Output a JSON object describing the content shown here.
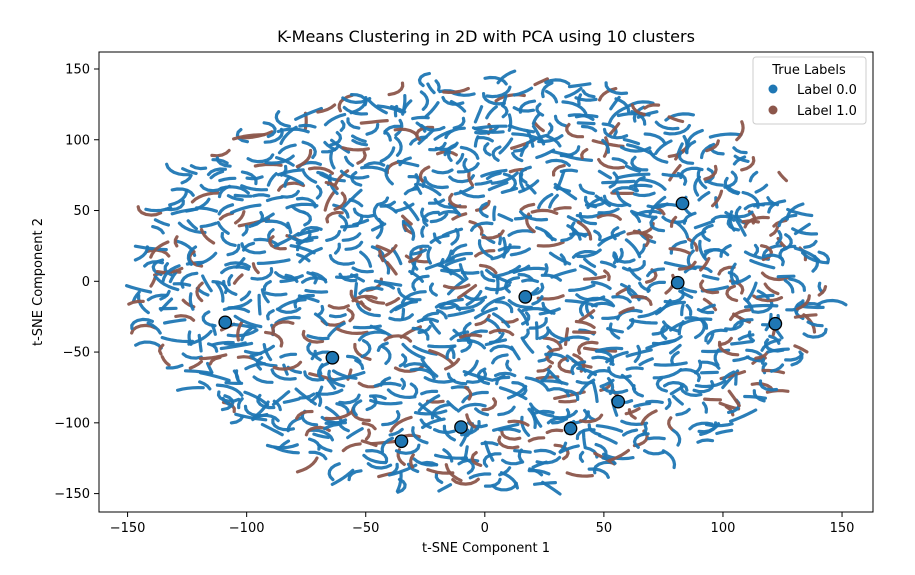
{
  "chart_data": {
    "type": "scatter",
    "title": "K-Means Clustering in 2D with PCA using 10 clusters",
    "xlabel": "t-SNE Component 1",
    "ylabel": "t-SNE Component 2",
    "xlim": [
      -162,
      163
    ],
    "ylim": [
      -163,
      162
    ],
    "xticks": [
      -150,
      -100,
      -50,
      0,
      50,
      100,
      150
    ],
    "yticks": [
      -150,
      -100,
      -50,
      0,
      50,
      100,
      150
    ],
    "xtick_labels": [
      "−150",
      "−100",
      "−50",
      "0",
      "50",
      "100",
      "150"
    ],
    "ytick_labels": [
      "−150",
      "−100",
      "−50",
      "0",
      "50",
      "100",
      "150"
    ],
    "grid": false,
    "legend": {
      "title": "True Labels",
      "placement": "top-right",
      "entries": [
        {
          "label": "Label 0.0",
          "color": "#1f77b4"
        },
        {
          "label": "Label 1.0",
          "color": "#8c564b"
        }
      ]
    },
    "point_cloud": {
      "shape": "ellipse",
      "center": [
        0,
        0
      ],
      "x_half_width": 148,
      "y_half_height": 148,
      "pattern": "short curved worm-like strands",
      "colors": {
        "label_0": "#1f77b4",
        "label_1": "#8c564b"
      },
      "label_1_fraction": 0.2
    },
    "centroids": {
      "name": "cluster centers",
      "color": "#1f77b4",
      "edge_color": "#000000",
      "points": [
        {
          "x": 83,
          "y": 55
        },
        {
          "x": -109,
          "y": -29
        },
        {
          "x": 17,
          "y": -11
        },
        {
          "x": 81,
          "y": -1
        },
        {
          "x": 122,
          "y": -30
        },
        {
          "x": -64,
          "y": -54
        },
        {
          "x": 56,
          "y": -85
        },
        {
          "x": -10,
          "y": -103
        },
        {
          "x": 36,
          "y": -104
        },
        {
          "x": -35,
          "y": -113
        }
      ]
    }
  }
}
